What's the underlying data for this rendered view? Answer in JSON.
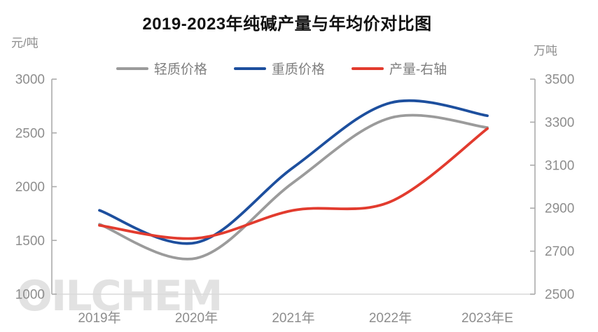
{
  "title": "2019-2023年纯碱产量与年均价对比图",
  "left_axis_unit": "元/吨",
  "right_axis_unit": "万吨",
  "watermark": "OILCHEM",
  "chart_data": {
    "type": "line",
    "smooth": true,
    "grid": false,
    "legend_position": "top",
    "title": "2019-2023年纯碱产量与年均价对比图",
    "categories": [
      "2019年",
      "2020年",
      "2021年",
      "2022年",
      "2023年E"
    ],
    "left_axis": {
      "unit": "元/吨",
      "min": 1000,
      "max": 3000,
      "ticks": [
        3000,
        2500,
        2000,
        1500,
        1000
      ]
    },
    "right_axis": {
      "unit": "万吨",
      "min": 2500,
      "max": 3500,
      "ticks": [
        3500,
        3300,
        3100,
        2900,
        2700,
        2500
      ]
    },
    "series": [
      {
        "name": "轻质价格",
        "key": "light-price",
        "axis": "left",
        "color": "#9b9b9b",
        "values": [
          1650,
          1335,
          2040,
          2640,
          2550
        ]
      },
      {
        "name": "重质价格",
        "key": "heavy-price",
        "axis": "left",
        "color": "#1d4f9e",
        "values": [
          1780,
          1480,
          2180,
          2780,
          2660
        ]
      },
      {
        "name": "产量-右轴",
        "key": "production",
        "axis": "right",
        "color": "#e23b2e",
        "values": [
          2820,
          2760,
          2890,
          2930,
          3270
        ]
      }
    ],
    "colors": {
      "axis_line": "#ababab",
      "baseline": "#d9d9d9",
      "tick_text": "#8d8d8d"
    }
  }
}
